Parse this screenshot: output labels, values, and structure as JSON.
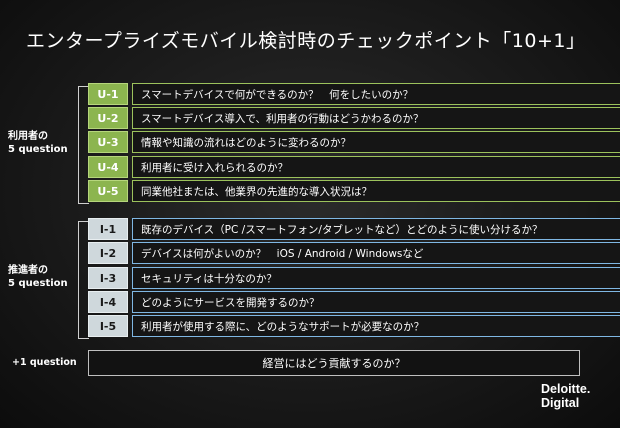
{
  "title": "エンタープライズモバイル検討時のチェックポイント「10+1」",
  "user_group": {
    "label_line1": "利用者の",
    "label_line2": "5 question"
  },
  "promoter_group": {
    "label_line1": "推進者の",
    "label_line2": "5 question"
  },
  "user_questions": [
    {
      "code": "U-1",
      "text": "スマートデバイスで何ができるのか？　何をしたいのか？"
    },
    {
      "code": "U-2",
      "text": "スマートデバイス導入で、利用者の行動はどうかわるのか？"
    },
    {
      "code": "U-3",
      "text": "情報や知識の流れはどのように変わるのか？"
    },
    {
      "code": "U-4",
      "text": "利用者に受け入れられるのか？"
    },
    {
      "code": "U-5",
      "text": "同業他社または、他業界の先進的な導入状況は？"
    }
  ],
  "promoter_questions": [
    {
      "code": "I-1",
      "text": "既存のデバイス（PC /スマートフォン/タブレットなど）とどのように使い分けるか？"
    },
    {
      "code": "I-2",
      "text": "デバイスは何がよいのか？　iOS / Android / Windowsなど"
    },
    {
      "code": "I-3",
      "text": "セキュリティは十分なのか？"
    },
    {
      "code": "I-4",
      "text": "どのようにサービスを開発するのか？"
    },
    {
      "code": "I-5",
      "text": "利用者が使用する際に、どのようなサポートが必要なのか？"
    }
  ],
  "plus_one": {
    "label": "+1 question",
    "text": "経営にはどう貢献するのか？"
  },
  "logo": {
    "line1": "Deloitte.",
    "line2": "Digital"
  },
  "colors": {
    "user_accent": "#8cb54f",
    "promoter_accent": "#7fb7e3",
    "promoter_code_bg": "#cfd8dc"
  }
}
